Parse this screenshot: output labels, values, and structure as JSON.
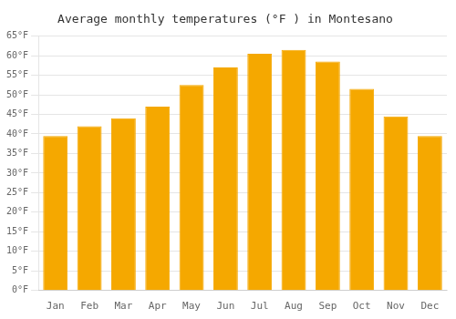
{
  "chart_data": {
    "type": "bar",
    "title": "Average monthly temperatures (°F ) in Montesano",
    "categories": [
      "Jan",
      "Feb",
      "Mar",
      "Apr",
      "May",
      "Jun",
      "Jul",
      "Aug",
      "Sep",
      "Oct",
      "Nov",
      "Dec"
    ],
    "values": [
      39.5,
      42.0,
      44.0,
      47.0,
      52.5,
      57.0,
      60.5,
      61.5,
      58.5,
      51.5,
      44.5,
      39.5
    ],
    "color": "#F5A800",
    "ylim": [
      0,
      65
    ],
    "yticks": [
      {
        "value": 0,
        "label": "0°F"
      },
      {
        "value": 5,
        "label": "5°F"
      },
      {
        "value": 10,
        "label": "10°F"
      },
      {
        "value": 15,
        "label": "15°F"
      },
      {
        "value": 20,
        "label": "20°F"
      },
      {
        "value": 25,
        "label": "25°F"
      },
      {
        "value": 30,
        "label": "30°F"
      },
      {
        "value": 35,
        "label": "35°F"
      },
      {
        "value": 40,
        "label": "40°F"
      },
      {
        "value": 45,
        "label": "45°F"
      },
      {
        "value": 50,
        "label": "50°F"
      },
      {
        "value": 55,
        "label": "55°F"
      },
      {
        "value": 60,
        "label": "60°F"
      },
      {
        "value": 65,
        "label": "65°F"
      }
    ],
    "grid": true
  }
}
